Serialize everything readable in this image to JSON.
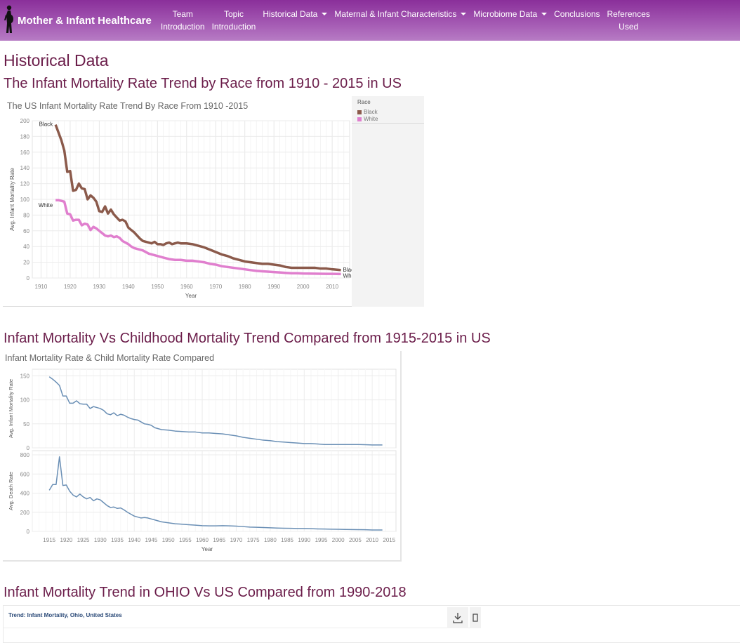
{
  "brand": {
    "name": "Mother & Infant Healthcare",
    "logo_icon": "pregnant-woman-silhouette-icon"
  },
  "nav": [
    {
      "id": "team",
      "line1": "Team",
      "line2": "Introduction",
      "dropdown": false
    },
    {
      "id": "topic",
      "line1": "Topic",
      "line2": "Introduction",
      "dropdown": false
    },
    {
      "id": "historical",
      "line1": "Historical Data",
      "line2": "",
      "dropdown": true
    },
    {
      "id": "maternal",
      "line1": "Maternal & Infant Characteristics",
      "line2": "",
      "dropdown": true
    },
    {
      "id": "microbiome",
      "line1": "Microbiome Data",
      "line2": "",
      "dropdown": true
    },
    {
      "id": "conclusions",
      "line1": "Conclusions",
      "line2": "",
      "dropdown": false
    },
    {
      "id": "references",
      "line1": "References",
      "line2": "Used",
      "dropdown": false
    }
  ],
  "page": {
    "title": "Historical Data"
  },
  "sections": {
    "race": {
      "heading": "The Infant Mortality Rate Trend by Race from 1910 - 2015 in US"
    },
    "child": {
      "heading": "Infant Mortality Vs Childhood Mortality Trend Compared from 1915-2015 in US"
    },
    "ohio": {
      "heading": "Infant Mortality Trend in OHIO Vs US Compared from 1990-2018"
    }
  },
  "colors": {
    "black_series": "#8b5a4b",
    "white_series": "#e07fce",
    "blue_series": "#6a8fb5",
    "heading": "#6b1d4a"
  },
  "chart_data": [
    {
      "type": "line",
      "title": "The US Infant Mortality Rate Trend By Race From 1910 -2015",
      "xlabel": "Year",
      "ylabel": "Avg. Infant Mortality Rate",
      "xlim": [
        1907,
        2016
      ],
      "ylim": [
        0,
        200
      ],
      "xticks": [
        1910,
        1920,
        1930,
        1940,
        1950,
        1960,
        1970,
        1980,
        1990,
        2000,
        2010
      ],
      "yticks": [
        0,
        20,
        40,
        60,
        80,
        100,
        120,
        140,
        160,
        180,
        200
      ],
      "grid": true,
      "legend": {
        "title": "Race",
        "placement": "right"
      },
      "series": [
        {
          "name": "Black",
          "start_label": "Black",
          "end_label": "Black",
          "x": [
            1915,
            1916,
            1917,
            1918,
            1919,
            1920,
            1921,
            1922,
            1923,
            1924,
            1925,
            1926,
            1927,
            1928,
            1929,
            1930,
            1931,
            1932,
            1933,
            1934,
            1935,
            1936,
            1937,
            1938,
            1939,
            1940,
            1941,
            1942,
            1943,
            1944,
            1945,
            1946,
            1947,
            1948,
            1949,
            1950,
            1951,
            1952,
            1953,
            1954,
            1955,
            1956,
            1957,
            1958,
            1959,
            1960,
            1962,
            1964,
            1966,
            1968,
            1970,
            1972,
            1974,
            1976,
            1978,
            1980,
            1982,
            1984,
            1986,
            1988,
            1990,
            1992,
            1994,
            1996,
            1998,
            2000,
            2002,
            2004,
            2006,
            2008,
            2010,
            2013
          ],
          "values": [
            195,
            185,
            175,
            162,
            135,
            136,
            111,
            112,
            120,
            114,
            113,
            100,
            105,
            102,
            97,
            85,
            84,
            91,
            82,
            87,
            81,
            77,
            73,
            74,
            72,
            64,
            61,
            58,
            54,
            50,
            47,
            46,
            45,
            44,
            46,
            43,
            43,
            42,
            44,
            45,
            43,
            44,
            45,
            44,
            44,
            44,
            43,
            41,
            39,
            36,
            33,
            30,
            28,
            25,
            23,
            21,
            20,
            19,
            18,
            18,
            17,
            16,
            14,
            13,
            13,
            13,
            13,
            13,
            12,
            12,
            11,
            10
          ]
        },
        {
          "name": "White",
          "start_label": "White",
          "end_label": "White",
          "x": [
            1915,
            1916,
            1917,
            1918,
            1919,
            1920,
            1921,
            1922,
            1923,
            1924,
            1925,
            1926,
            1927,
            1928,
            1929,
            1930,
            1931,
            1932,
            1933,
            1934,
            1935,
            1936,
            1937,
            1938,
            1939,
            1940,
            1941,
            1942,
            1943,
            1944,
            1945,
            1946,
            1947,
            1948,
            1950,
            1952,
            1954,
            1956,
            1958,
            1960,
            1962,
            1964,
            1966,
            1968,
            1970,
            1972,
            1974,
            1976,
            1978,
            1980,
            1982,
            1984,
            1986,
            1988,
            1990,
            1992,
            1994,
            1996,
            1998,
            2000,
            2002,
            2004,
            2006,
            2008,
            2010,
            2013
          ],
          "values": [
            99,
            99,
            98,
            97,
            82,
            81,
            73,
            74,
            74,
            67,
            69,
            68,
            61,
            65,
            63,
            60,
            57,
            54,
            53,
            54,
            52,
            53,
            51,
            47,
            45,
            43,
            40,
            38,
            37,
            36,
            35,
            33,
            31,
            30,
            28,
            26,
            24,
            23,
            23,
            22,
            22,
            21,
            20,
            18,
            17,
            15,
            14,
            13,
            12,
            11,
            10,
            9,
            8.5,
            8,
            7.5,
            7,
            6.5,
            6,
            6,
            5.7,
            5.6,
            5.5,
            5.4,
            5.3,
            5.2,
            5
          ]
        }
      ]
    },
    {
      "type": "line",
      "title": "Infant Mortality Rate & Child Mortality Rate Compared",
      "xlabel": "Year",
      "xlim": [
        1910,
        2017
      ],
      "xticks": [
        1915,
        1920,
        1925,
        1930,
        1935,
        1940,
        1945,
        1950,
        1955,
        1960,
        1965,
        1970,
        1975,
        1980,
        1985,
        1990,
        1995,
        2000,
        2005,
        2010,
        2015
      ],
      "grid": true,
      "panels": [
        {
          "ylabel": "Avg. Infant Mortality Rate",
          "ylim": [
            0,
            155
          ],
          "yticks": [
            0,
            50,
            100,
            150
          ],
          "x": [
            1915,
            1916,
            1917,
            1918,
            1919,
            1920,
            1921,
            1922,
            1923,
            1924,
            1925,
            1926,
            1927,
            1928,
            1929,
            1930,
            1931,
            1932,
            1933,
            1934,
            1935,
            1936,
            1937,
            1938,
            1939,
            1940,
            1941,
            1942,
            1943,
            1944,
            1945,
            1946,
            1947,
            1948,
            1950,
            1952,
            1954,
            1956,
            1958,
            1960,
            1962,
            1964,
            1966,
            1968,
            1970,
            1972,
            1974,
            1976,
            1978,
            1980,
            1982,
            1984,
            1986,
            1988,
            1990,
            1992,
            1994,
            1996,
            1998,
            2000,
            2002,
            2004,
            2006,
            2008,
            2010,
            2013
          ],
          "values": [
            148,
            143,
            137,
            130,
            108,
            108,
            93,
            93,
            98,
            92,
            91,
            91,
            82,
            86,
            84,
            82,
            78,
            71,
            69,
            73,
            67,
            70,
            68,
            64,
            61,
            59,
            58,
            54,
            50,
            49,
            47,
            42,
            40,
            38,
            37,
            35,
            34,
            33,
            33,
            31,
            31,
            30,
            29,
            27,
            25,
            22,
            20,
            18,
            16,
            15,
            13,
            12,
            11,
            10,
            9,
            9,
            8,
            7,
            7,
            7,
            7,
            7,
            7,
            6.5,
            6,
            6
          ]
        },
        {
          "ylabel": "Avg. Death Rate",
          "ylim": [
            0,
            800
          ],
          "yticks": [
            0,
            200,
            400,
            600,
            800
          ],
          "x": [
            1915,
            1916,
            1917,
            1918,
            1919,
            1920,
            1921,
            1922,
            1923,
            1924,
            1925,
            1926,
            1927,
            1928,
            1929,
            1930,
            1931,
            1932,
            1933,
            1934,
            1935,
            1936,
            1937,
            1938,
            1939,
            1940,
            1941,
            1942,
            1943,
            1944,
            1945,
            1946,
            1947,
            1948,
            1950,
            1952,
            1954,
            1956,
            1958,
            1960,
            1962,
            1964,
            1966,
            1968,
            1970,
            1972,
            1974,
            1976,
            1978,
            1980,
            1982,
            1984,
            1986,
            1988,
            1990,
            1992,
            1994,
            1996,
            1998,
            2000,
            2002,
            2004,
            2006,
            2008,
            2010,
            2013
          ],
          "values": [
            430,
            490,
            490,
            780,
            480,
            485,
            420,
            380,
            360,
            390,
            360,
            340,
            355,
            320,
            340,
            330,
            300,
            270,
            250,
            255,
            240,
            245,
            225,
            200,
            180,
            160,
            150,
            140,
            145,
            140,
            130,
            120,
            110,
            100,
            90,
            80,
            75,
            70,
            65,
            60,
            58,
            58,
            60,
            58,
            55,
            50,
            45,
            43,
            40,
            38,
            35,
            33,
            32,
            30,
            30,
            28,
            26,
            25,
            23,
            22,
            20,
            19,
            18,
            17,
            15,
            15
          ]
        }
      ]
    }
  ],
  "ohio_embed": {
    "title": "Trend: Infant Mortality, Ohio, United States",
    "download_icon": "download-icon",
    "share_icon": "share-icon"
  }
}
